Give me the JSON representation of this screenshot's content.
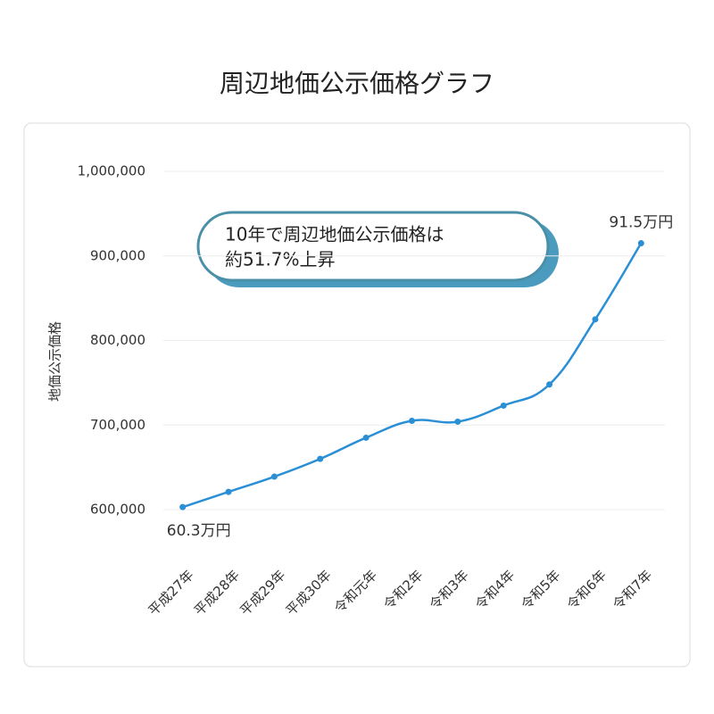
{
  "chart_data": {
    "type": "line",
    "title": "周辺地価公示価格グラフ",
    "y_label": "地価公示価格",
    "annotation": [
      "10年で周辺地価公示価格は",
      "約51.7%上昇"
    ],
    "categories": [
      "平成27年",
      "平成28年",
      "平成29年",
      "平成30年",
      "令和元年",
      "令和2年",
      "令和3年",
      "令和4年",
      "令和5年",
      "令和6年",
      "令和7年"
    ],
    "values": [
      603000,
      621000,
      639000,
      660000,
      685000,
      705000,
      704000,
      723000,
      748000,
      825000,
      915000
    ],
    "value_labels": [
      "60.3万円",
      null,
      null,
      null,
      null,
      null,
      null,
      null,
      null,
      null,
      "91.5万円"
    ],
    "color": "#2b8fd6",
    "ylim": [
      600000,
      1000000
    ],
    "yticks": [
      {
        "value": 600000,
        "label": "600,000"
      },
      {
        "value": 700000,
        "label": "700,000"
      },
      {
        "value": 800000,
        "label": "800,000"
      },
      {
        "value": 900000,
        "label": "900,000"
      },
      {
        "value": 1000000,
        "label": "1,000,000"
      }
    ],
    "grid": true
  }
}
